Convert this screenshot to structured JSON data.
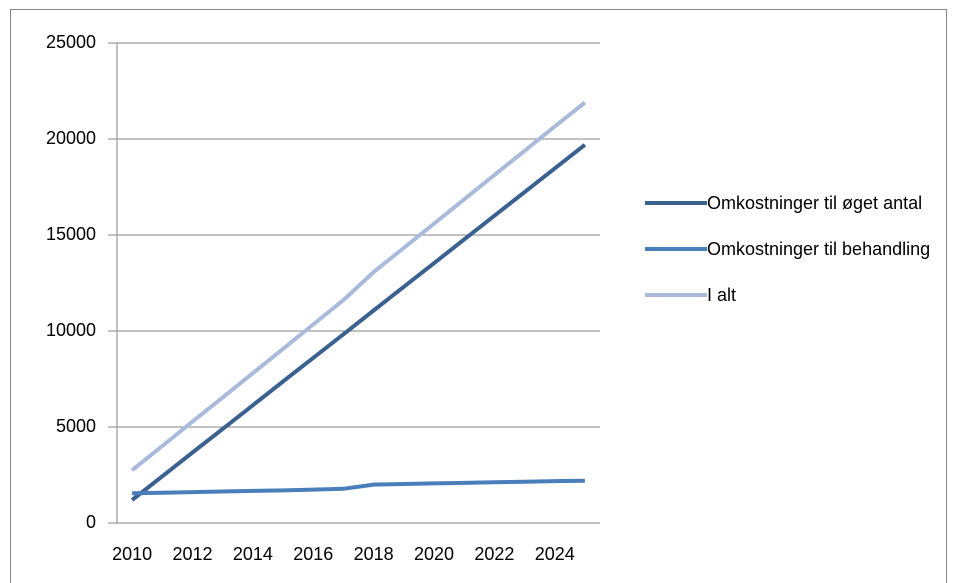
{
  "chart_data": {
    "type": "line",
    "categories": [
      "2010",
      null,
      "2012",
      null,
      "2014",
      null,
      "2016",
      null,
      "2018",
      null,
      "2020",
      null,
      "2022",
      null,
      "2024",
      null
    ],
    "series": [
      {
        "name": "Omkostninger til øget antal",
        "color": "#3a6190",
        "values": [
          1200,
          2430,
          3670,
          4900,
          6130,
          7370,
          8600,
          9830,
          11070,
          12300,
          13530,
          14770,
          16000,
          17230,
          18470,
          19700
        ]
      },
      {
        "name": "Omkostninger til behandling",
        "color": "#4a7ebb",
        "values": [
          1550,
          1580,
          1610,
          1640,
          1670,
          1700,
          1740,
          1780,
          2000,
          2030,
          2060,
          2090,
          2120,
          2150,
          2180,
          2200
        ]
      },
      {
        "name": "I alt",
        "color": "#a9badb",
        "values": [
          2750,
          4010,
          5280,
          6540,
          7800,
          9070,
          10340,
          11610,
          13070,
          14330,
          15590,
          16860,
          18120,
          19380,
          20650,
          21900
        ]
      }
    ],
    "ylim": [
      0,
      25000
    ],
    "yticks": [
      0,
      5000,
      10000,
      15000,
      20000,
      25000
    ],
    "grid": true,
    "legend": "right"
  }
}
